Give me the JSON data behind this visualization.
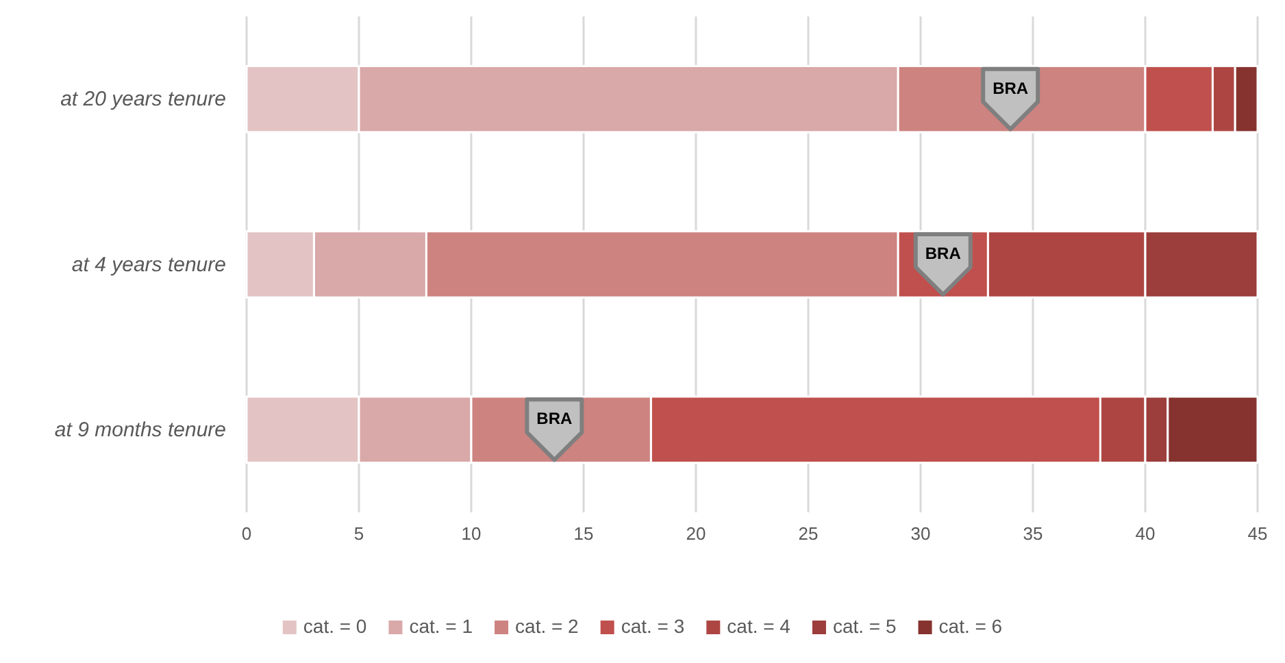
{
  "chart_data": {
    "type": "bar",
    "orientation": "horizontal",
    "stacked": true,
    "categories": [
      "at 20 years tenure",
      "at 4 years tenure",
      "at 9 months tenure"
    ],
    "series": [
      {
        "name": "cat. = 0",
        "color": "#e3c3c3",
        "values": [
          5,
          3,
          5
        ]
      },
      {
        "name": "cat. = 1",
        "color": "#d9a8a8",
        "values": [
          24,
          5,
          5
        ]
      },
      {
        "name": "cat. = 2",
        "color": "#cd8380",
        "values": [
          11,
          21,
          8
        ]
      },
      {
        "name": "cat. = 3",
        "color": "#c0504d",
        "values": [
          3,
          4,
          20
        ]
      },
      {
        "name": "cat. = 4",
        "color": "#ad4643",
        "values": [
          1,
          7,
          2
        ]
      },
      {
        "name": "cat. = 5",
        "color": "#9b3e3c",
        "values": [
          0,
          5,
          1
        ]
      },
      {
        "name": "cat. = 6",
        "color": "#86332f",
        "values": [
          1,
          0,
          4
        ]
      },
      {
        "type": "scatter",
        "name": "BRA",
        "color": "#c0c0c0",
        "values": [
          34,
          31,
          13.7
        ]
      }
    ],
    "xlim": [
      0,
      45
    ],
    "xticks": [
      0,
      5,
      10,
      15,
      20,
      25,
      30,
      35,
      40,
      45
    ],
    "grid": "x",
    "legend": "bottom"
  }
}
